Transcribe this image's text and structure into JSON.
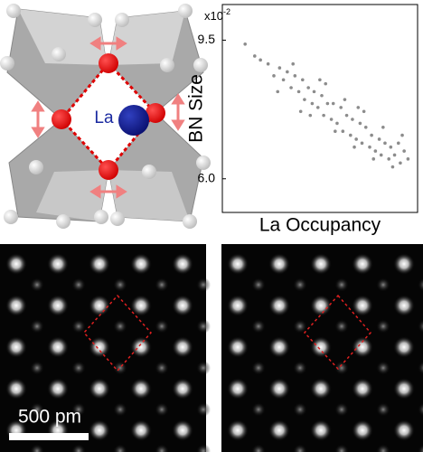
{
  "chart_data": {
    "type": "scatter",
    "ylabel": "BN Size",
    "xlabel": "La Occupancy",
    "y_multiplier": {
      "base": "x10",
      "exponent": "-2"
    },
    "color": "#8c8c8c",
    "xlim": [
      0,
      1
    ],
    "ylim": [
      5.15,
      10.4
    ],
    "yticks": [
      {
        "value": 6,
        "label": "6.0"
      },
      9.5
    ],
    "x": [
      0.1,
      0.15,
      0.18,
      0.22,
      0.25,
      0.28,
      0.3,
      0.32,
      0.34,
      0.36,
      0.38,
      0.4,
      0.41,
      0.43,
      0.45,
      0.46,
      0.48,
      0.5,
      0.51,
      0.53,
      0.55,
      0.56,
      0.58,
      0.6,
      0.61,
      0.63,
      0.65,
      0.66,
      0.68,
      0.7,
      0.71,
      0.73,
      0.75,
      0.76,
      0.78,
      0.8,
      0.81,
      0.83,
      0.85,
      0.86,
      0.88,
      0.9,
      0.91,
      0.93,
      0.95,
      0.27,
      0.35,
      0.44,
      0.52,
      0.62,
      0.72,
      0.82,
      0.92,
      0.39,
      0.57,
      0.67,
      0.77,
      0.87,
      0.49,
      0.69
    ],
    "values": [
      9.4,
      9.1,
      9.0,
      8.9,
      8.6,
      8.8,
      8.5,
      8.7,
      8.3,
      8.6,
      8.2,
      8.5,
      8.0,
      8.3,
      7.9,
      8.2,
      7.8,
      8.1,
      7.6,
      7.9,
      7.5,
      7.9,
      7.4,
      7.8,
      7.2,
      7.6,
      7.1,
      7.5,
      7.0,
      7.4,
      6.9,
      7.3,
      6.8,
      7.1,
      6.7,
      7.0,
      6.6,
      6.9,
      6.5,
      6.8,
      6.6,
      6.9,
      6.4,
      6.7,
      6.5,
      8.2,
      8.9,
      7.6,
      8.4,
      8.0,
      7.7,
      7.3,
      7.1,
      7.7,
      7.2,
      6.8,
      6.5,
      6.3,
      8.5,
      7.8
    ]
  },
  "structure": {
    "atom_label": "La"
  },
  "images": {
    "scale_bar": "500 pm"
  }
}
